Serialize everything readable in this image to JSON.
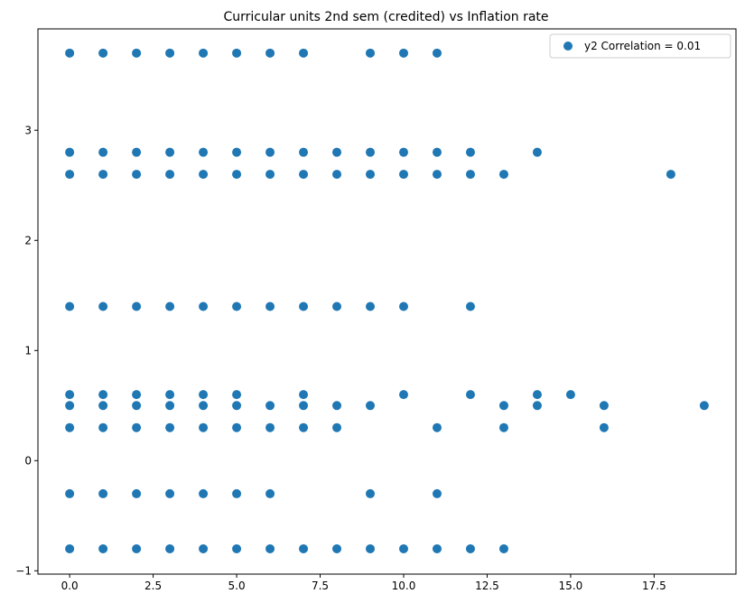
{
  "chart_data": {
    "type": "scatter",
    "title": "Curricular units 2nd sem (credited) vs Inflation rate",
    "xlabel": "",
    "ylabel": "",
    "xlim": [
      -0.95,
      19.95
    ],
    "ylim": [
      -1.03,
      3.92
    ],
    "xticks": [
      0.0,
      2.5,
      5.0,
      7.5,
      10.0,
      12.5,
      15.0,
      17.5
    ],
    "xtick_labels": [
      "0.0",
      "2.5",
      "5.0",
      "7.5",
      "10.0",
      "12.5",
      "15.0",
      "17.5"
    ],
    "yticks": [
      -1,
      0,
      1,
      2,
      3
    ],
    "ytick_labels": [
      "−1",
      "0",
      "1",
      "2",
      "3"
    ],
    "grid": false,
    "legend_position": "top-right",
    "series": [
      {
        "name": "y2 Correlation = 0.01",
        "color": "#1f77b4",
        "points": [
          [
            0,
            3.7
          ],
          [
            1,
            3.7
          ],
          [
            2,
            3.7
          ],
          [
            3,
            3.7
          ],
          [
            4,
            3.7
          ],
          [
            5,
            3.7
          ],
          [
            6,
            3.7
          ],
          [
            7,
            3.7
          ],
          [
            9,
            3.7
          ],
          [
            10,
            3.7
          ],
          [
            11,
            3.7
          ],
          [
            0,
            2.8
          ],
          [
            1,
            2.8
          ],
          [
            2,
            2.8
          ],
          [
            3,
            2.8
          ],
          [
            4,
            2.8
          ],
          [
            5,
            2.8
          ],
          [
            6,
            2.8
          ],
          [
            7,
            2.8
          ],
          [
            8,
            2.8
          ],
          [
            9,
            2.8
          ],
          [
            10,
            2.8
          ],
          [
            11,
            2.8
          ],
          [
            12,
            2.8
          ],
          [
            14,
            2.8
          ],
          [
            0,
            2.6
          ],
          [
            1,
            2.6
          ],
          [
            2,
            2.6
          ],
          [
            3,
            2.6
          ],
          [
            4,
            2.6
          ],
          [
            5,
            2.6
          ],
          [
            6,
            2.6
          ],
          [
            7,
            2.6
          ],
          [
            8,
            2.6
          ],
          [
            9,
            2.6
          ],
          [
            10,
            2.6
          ],
          [
            11,
            2.6
          ],
          [
            12,
            2.6
          ],
          [
            13,
            2.6
          ],
          [
            18,
            2.6
          ],
          [
            0,
            1.4
          ],
          [
            1,
            1.4
          ],
          [
            2,
            1.4
          ],
          [
            3,
            1.4
          ],
          [
            4,
            1.4
          ],
          [
            5,
            1.4
          ],
          [
            6,
            1.4
          ],
          [
            7,
            1.4
          ],
          [
            8,
            1.4
          ],
          [
            9,
            1.4
          ],
          [
            10,
            1.4
          ],
          [
            12,
            1.4
          ],
          [
            0,
            0.6
          ],
          [
            1,
            0.6
          ],
          [
            2,
            0.6
          ],
          [
            3,
            0.6
          ],
          [
            4,
            0.6
          ],
          [
            5,
            0.6
          ],
          [
            7,
            0.6
          ],
          [
            10,
            0.6
          ],
          [
            12,
            0.6
          ],
          [
            14,
            0.6
          ],
          [
            15,
            0.6
          ],
          [
            0,
            0.5
          ],
          [
            1,
            0.5
          ],
          [
            2,
            0.5
          ],
          [
            3,
            0.5
          ],
          [
            4,
            0.5
          ],
          [
            5,
            0.5
          ],
          [
            6,
            0.5
          ],
          [
            7,
            0.5
          ],
          [
            8,
            0.5
          ],
          [
            9,
            0.5
          ],
          [
            13,
            0.5
          ],
          [
            14,
            0.5
          ],
          [
            16,
            0.5
          ],
          [
            19,
            0.5
          ],
          [
            0,
            0.3
          ],
          [
            1,
            0.3
          ],
          [
            2,
            0.3
          ],
          [
            3,
            0.3
          ],
          [
            4,
            0.3
          ],
          [
            5,
            0.3
          ],
          [
            6,
            0.3
          ],
          [
            7,
            0.3
          ],
          [
            8,
            0.3
          ],
          [
            11,
            0.3
          ],
          [
            13,
            0.3
          ],
          [
            16,
            0.3
          ],
          [
            0,
            -0.3
          ],
          [
            1,
            -0.3
          ],
          [
            2,
            -0.3
          ],
          [
            3,
            -0.3
          ],
          [
            4,
            -0.3
          ],
          [
            5,
            -0.3
          ],
          [
            6,
            -0.3
          ],
          [
            9,
            -0.3
          ],
          [
            11,
            -0.3
          ],
          [
            0,
            -0.8
          ],
          [
            1,
            -0.8
          ],
          [
            2,
            -0.8
          ],
          [
            3,
            -0.8
          ],
          [
            4,
            -0.8
          ],
          [
            5,
            -0.8
          ],
          [
            6,
            -0.8
          ],
          [
            7,
            -0.8
          ],
          [
            8,
            -0.8
          ],
          [
            9,
            -0.8
          ],
          [
            10,
            -0.8
          ],
          [
            11,
            -0.8
          ],
          [
            12,
            -0.8
          ],
          [
            13,
            -0.8
          ]
        ]
      }
    ]
  }
}
